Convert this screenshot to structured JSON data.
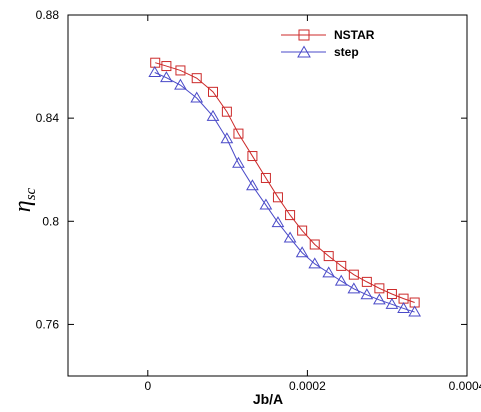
{
  "chart_data": {
    "type": "line",
    "xlabel": "Jb/A",
    "ylabel": "η",
    "ylabel_subscript": "sc",
    "xlim": [
      -0.0001,
      0.0004
    ],
    "ylim": [
      0.74,
      0.88
    ],
    "xticks": [
      0,
      0.0002,
      0.0004
    ],
    "xtick_labels": [
      "0",
      "0.0002",
      "0.0004"
    ],
    "yticks": [
      0.76,
      0.8,
      0.84,
      0.88
    ],
    "ytick_labels": [
      "0.76",
      "0.8",
      "0.84",
      "0.88"
    ],
    "grid": false,
    "legend_position": "top-right",
    "series": [
      {
        "name": "NSTAR",
        "color": "#cc2a2a",
        "marker": "square",
        "points": [
          [
            9.3e-06,
            0.8615
          ],
          [
            2.33e-05,
            0.8602
          ],
          [
            4.09e-05,
            0.8585
          ],
          [
            6.13e-05,
            0.8555
          ],
          [
            8.17e-05,
            0.8502
          ],
          [
            9.91e-05,
            0.8425
          ],
          [
            0.0001136,
            0.834
          ],
          [
            0.0001311,
            0.8253
          ],
          [
            0.000148,
            0.8168
          ],
          [
            0.0001631,
            0.8093
          ],
          [
            0.0001783,
            0.8024
          ],
          [
            0.0001934,
            0.7964
          ],
          [
            0.0002092,
            0.791
          ],
          [
            0.0002267,
            0.7865
          ],
          [
            0.0002424,
            0.7827
          ],
          [
            0.0002582,
            0.7793
          ],
          [
            0.0002745,
            0.7765
          ],
          [
            0.0002902,
            0.774
          ],
          [
            0.0003059,
            0.7718
          ],
          [
            0.0003205,
            0.77
          ],
          [
            0.0003344,
            0.7685
          ]
        ]
      },
      {
        "name": "step",
        "color": "#4a4ac8",
        "marker": "triangle",
        "points": [
          [
            8.7e-06,
            0.8577
          ],
          [
            2.33e-05,
            0.8557
          ],
          [
            4.09e-05,
            0.8528
          ],
          [
            6.13e-05,
            0.8478
          ],
          [
            8.17e-05,
            0.8407
          ],
          [
            9.91e-05,
            0.832
          ],
          [
            0.0001136,
            0.8225
          ],
          [
            0.0001311,
            0.8138
          ],
          [
            0.000148,
            0.8063
          ],
          [
            0.0001631,
            0.7995
          ],
          [
            0.0001783,
            0.7935
          ],
          [
            0.0001934,
            0.7878
          ],
          [
            0.0002092,
            0.7835
          ],
          [
            0.0002267,
            0.78
          ],
          [
            0.0002424,
            0.7768
          ],
          [
            0.0002582,
            0.7738
          ],
          [
            0.0002745,
            0.7715
          ],
          [
            0.0002902,
            0.7695
          ],
          [
            0.0003059,
            0.7678
          ],
          [
            0.0003205,
            0.7662
          ],
          [
            0.0003344,
            0.7648
          ]
        ]
      }
    ]
  }
}
